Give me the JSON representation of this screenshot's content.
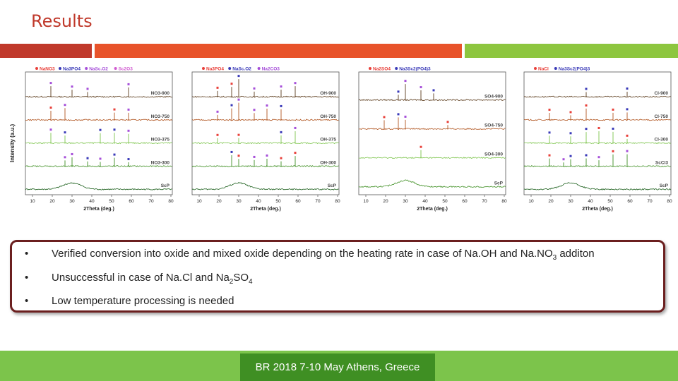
{
  "slide": {
    "title": "Results",
    "y_axis_label": "Intensity (a.u.)"
  },
  "colors": {
    "title": "#c0392b",
    "bar_dark_red": "#c0392b",
    "bar_orange": "#e8532a",
    "bar_green": "#8dc63f",
    "footer_green": "#7cc44b",
    "footer_dark": "#3f8f23",
    "box_border": "#6b1f1f",
    "marker_red": "#e8403a",
    "marker_blue": "#3a3ab8",
    "marker_purple": "#a64fd9",
    "marker_pink": "#d15cd1"
  },
  "panels": [
    {
      "legend": [
        "NaNO3",
        "Na3PO4",
        "NaSc.O2",
        "Sc2O3"
      ],
      "traces": [
        "NO3-900",
        "NO3-750",
        "NO3-375",
        "NO3-300",
        "ScP"
      ],
      "xlabel": "2Theta (deg.)",
      "ticks": [
        "10",
        "20",
        "30",
        "40",
        "50",
        "60",
        "70",
        "80"
      ]
    },
    {
      "legend": [
        "Na3PO4",
        "NaSc.O2",
        "Na2CO3"
      ],
      "traces": [
        "OH-900",
        "OH-750",
        "OH-375",
        "OH-300",
        "ScP"
      ],
      "xlabel": "2Theta (deg.)",
      "ticks": [
        "10",
        "20",
        "30",
        "40",
        "50",
        "60",
        "70",
        "80"
      ]
    },
    {
      "legend": [
        "Na2SO4",
        "Na3Sc2(PO4)3"
      ],
      "traces": [
        "SO4-900",
        "SO4-750",
        "SO4-300",
        "ScP"
      ],
      "xlabel": "2Theta (deg.)",
      "ticks": [
        "10",
        "20",
        "30",
        "40",
        "50",
        "60",
        "70",
        "80"
      ]
    },
    {
      "legend": [
        "NaCl",
        "Na3Sc2(PO4)3"
      ],
      "traces": [
        "Cl-900",
        "Cl-750",
        "Cl-300",
        "ScCl3",
        "ScP"
      ],
      "xlabel": "2Theta (deg.)",
      "ticks": [
        "10",
        "20",
        "30",
        "40",
        "50",
        "60",
        "70",
        "80"
      ]
    }
  ],
  "bullets": {
    "b1": "Verified conversion into oxide and mixed oxide depending on the heating rate in case of Na.OH and Na.NO3 additon",
    "b1_parts": {
      "a": "Verified conversion into oxide and mixed oxide depending on the heating rate in case of Na.OH and Na.NO",
      "sub": "3",
      "b": " additon"
    },
    "b2_parts": {
      "a": "Unsuccessful in case of Na.Cl and Na",
      "sub1": "2",
      "b": "SO",
      "sub2": "4"
    },
    "b3": "Low temperature processing is needed",
    "marker": "•"
  },
  "footer": {
    "text": "BR 2018 7-10 May Athens, Greece"
  }
}
